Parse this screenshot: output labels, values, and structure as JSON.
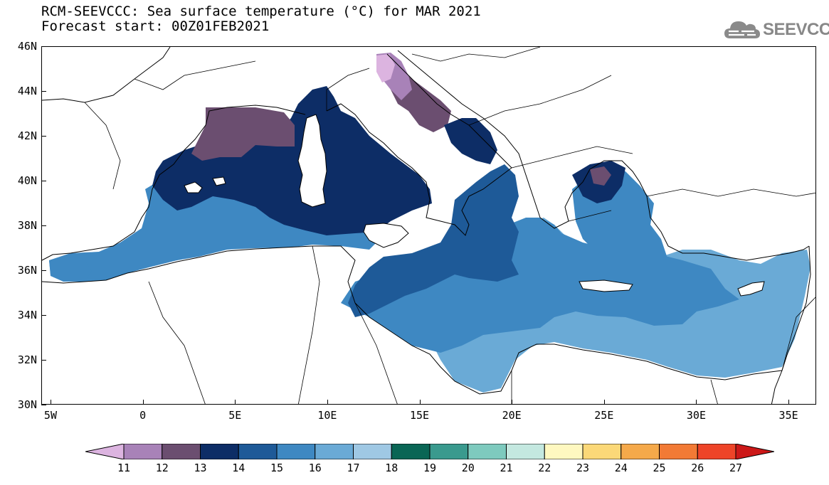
{
  "title": {
    "line1": "RCM-SEEVCCC: Sea surface temperature (°C) for MAR 2021",
    "line2": "Forecast start: 00Z01FEB2021"
  },
  "logo": {
    "text": "SEEVCCC",
    "icon": "cloud-logo-icon"
  },
  "map": {
    "lon_range": [
      -5.5,
      36.5
    ],
    "lat_range": [
      30,
      46
    ],
    "lat_labels": [
      "46N",
      "44N",
      "42N",
      "40N",
      "38N",
      "36N",
      "34N",
      "32N",
      "30N"
    ],
    "lat_values": [
      46,
      44,
      42,
      40,
      38,
      36,
      34,
      32,
      30
    ],
    "lon_labels": [
      "5W",
      "0",
      "5E",
      "10E",
      "15E",
      "20E",
      "25E",
      "30E",
      "35E"
    ],
    "lon_values": [
      -5,
      0,
      5,
      10,
      15,
      20,
      25,
      30,
      35
    ],
    "land_color": "#ffffff",
    "coastline_color": "#000000"
  },
  "colorbar": {
    "labels": [
      "11",
      "12",
      "13",
      "14",
      "15",
      "16",
      "17",
      "18",
      "19",
      "20",
      "21",
      "22",
      "23",
      "24",
      "25",
      "26",
      "27"
    ],
    "colors": [
      "#dcb4e0",
      "#a882b8",
      "#6b4e70",
      "#0d2d66",
      "#1e5a98",
      "#3e88c2",
      "#6aaad6",
      "#9fc8e4",
      "#0a6655",
      "#3a9a8e",
      "#7ecabe",
      "#c4e8e0",
      "#fff8c0",
      "#fbd878",
      "#f5a94a",
      "#f27a35",
      "#ee4428",
      "#cc1818"
    ]
  }
}
